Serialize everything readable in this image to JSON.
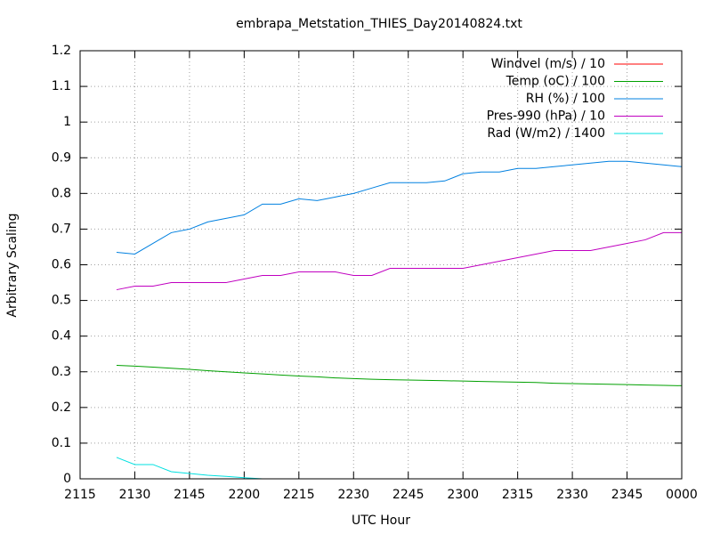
{
  "chart_data": {
    "type": "line",
    "title": "embrapa_Metstation_THIES_Day20140824.txt",
    "x_label": "UTC Hour",
    "y_label": "Arbitrary Scaling",
    "x": [
      1285,
      1290,
      1295,
      1300,
      1305,
      1310,
      1315,
      1320,
      1325,
      1330,
      1335,
      1340,
      1345,
      1350,
      1355,
      1360,
      1365,
      1370,
      1375,
      1380,
      1385,
      1390,
      1395,
      1400,
      1405,
      1410,
      1415,
      1420,
      1425,
      1430,
      1435,
      1440
    ],
    "series": [
      {
        "name": "Windvel (m/s) / 10",
        "color": "#ff0000",
        "values": [
          null,
          null,
          null,
          null,
          null,
          null,
          null,
          null,
          null,
          null,
          null,
          null,
          null,
          null,
          null,
          null,
          null,
          null,
          null,
          null,
          null,
          null,
          null,
          null,
          null,
          null,
          null,
          null,
          null,
          null,
          null,
          null
        ]
      },
      {
        "name": "Temp (oC) / 100",
        "color": "#00a000",
        "values": [
          0.318,
          0.316,
          0.313,
          0.31,
          0.307,
          0.303,
          0.3,
          0.297,
          0.294,
          0.291,
          0.288,
          0.286,
          0.283,
          0.281,
          0.279,
          0.278,
          0.277,
          0.276,
          0.275,
          0.274,
          0.273,
          0.272,
          0.271,
          0.27,
          0.268,
          0.267,
          0.266,
          0.265,
          0.264,
          0.263,
          0.262,
          0.261
        ]
      },
      {
        "name": "RH (%) / 100",
        "color": "#0080e0",
        "values": [
          0.635,
          0.63,
          0.66,
          0.69,
          0.7,
          0.72,
          0.73,
          0.74,
          0.77,
          0.77,
          0.785,
          0.78,
          0.79,
          0.8,
          0.815,
          0.83,
          0.83,
          0.83,
          0.835,
          0.855,
          0.86,
          0.86,
          0.87,
          0.87,
          0.875,
          0.88,
          0.885,
          0.89,
          0.89,
          0.885,
          0.88,
          0.875
        ]
      },
      {
        "name": "Pres-990 (hPa) / 10",
        "color": "#c000c0",
        "values": [
          0.53,
          0.54,
          0.54,
          0.55,
          0.55,
          0.55,
          0.55,
          0.56,
          0.57,
          0.57,
          0.58,
          0.58,
          0.58,
          0.57,
          0.57,
          0.59,
          0.59,
          0.59,
          0.59,
          0.59,
          0.6,
          0.61,
          0.62,
          0.63,
          0.64,
          0.64,
          0.64,
          0.65,
          0.66,
          0.67,
          0.69,
          0.69
        ]
      },
      {
        "name": "Rad (W/m2) / 1400",
        "color": "#00e0e0",
        "values": [
          0.06,
          0.04,
          0.04,
          0.02,
          0.015,
          0.01,
          0.007,
          0.003,
          0,
          0,
          0,
          0,
          0,
          0,
          0,
          0,
          0,
          0,
          0,
          0,
          0,
          0,
          0,
          0,
          0,
          0,
          0,
          0,
          0,
          0,
          0,
          0
        ]
      }
    ],
    "xlim": [
      1275,
      1440
    ],
    "xticks": [
      {
        "value": 1275,
        "label": "2115"
      },
      {
        "value": 1290,
        "label": "2130"
      },
      {
        "value": 1305,
        "label": "2145"
      },
      {
        "value": 1320,
        "label": "2200"
      },
      {
        "value": 1335,
        "label": "2215"
      },
      {
        "value": 1350,
        "label": "2230"
      },
      {
        "value": 1365,
        "label": "2245"
      },
      {
        "value": 1380,
        "label": "2300"
      },
      {
        "value": 1395,
        "label": "2315"
      },
      {
        "value": 1410,
        "label": "2330"
      },
      {
        "value": 1425,
        "label": "2345"
      },
      {
        "value": 1440,
        "label": "0000"
      }
    ],
    "ylim": [
      0,
      1.2
    ],
    "yticks": [
      0,
      0.1,
      0.2,
      0.3,
      0.4,
      0.5,
      0.6,
      0.7,
      0.8,
      0.9,
      1,
      1.1,
      1.2
    ],
    "grid": true,
    "legend": "top-right"
  }
}
